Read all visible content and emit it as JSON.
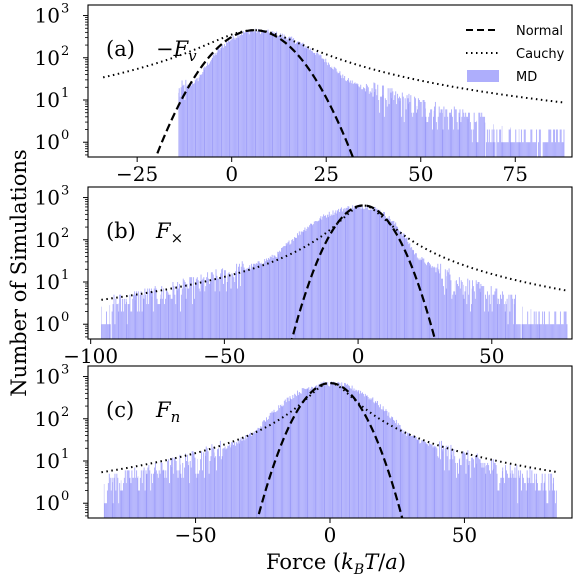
{
  "chart_data": [
    {
      "type": "histogram",
      "panel_label": "(a)",
      "symbol": "−F",
      "symbol_sub": "v",
      "xlim": [
        -38,
        90
      ],
      "ylim_log10": [
        -0.35,
        3.25
      ],
      "y_scale": "log",
      "xticks": [
        -25,
        0,
        25,
        50,
        75
      ],
      "xtick_labels": [
        "−25",
        "0",
        "25",
        "50",
        "75"
      ],
      "yticks": [
        0,
        1,
        2,
        3
      ],
      "normal": {
        "mu": 6,
        "sigma": 7.0,
        "peak": 450
      },
      "cauchy": {
        "x0": 6,
        "gamma": 11.5,
        "peak": 450,
        "xrange": [
          -34,
          88
        ]
      },
      "md": {
        "mu": 6,
        "sigma_left": 6.5,
        "sigma_right": 10.5,
        "peak": 430,
        "range": [
          -14,
          88
        ],
        "bin_width": 0.25
      },
      "legend": {
        "position": "top-right",
        "entries": [
          "Normal",
          "Cauchy",
          "MD"
        ]
      },
      "grid": false
    },
    {
      "type": "histogram",
      "panel_label": "(b)",
      "symbol": "F",
      "symbol_sub": "×",
      "xlim": [
        -101,
        80
      ],
      "ylim_log10": [
        -0.35,
        3.25
      ],
      "y_scale": "log",
      "xticks": [
        -100,
        -50,
        0,
        50
      ],
      "xtick_labels": [
        "−100",
        "−50",
        "0",
        "50"
      ],
      "yticks": [
        0,
        1,
        2,
        3
      ],
      "normal": {
        "mu": 2,
        "sigma": 7.0,
        "peak": 650
      },
      "cauchy": {
        "x0": 2,
        "gamma": 7.5,
        "peak": 650,
        "xrange": [
          -96,
          78
        ]
      },
      "md": {
        "mu": 2,
        "sigma_left": 14,
        "sigma_right": 8.5,
        "peak": 620,
        "range": [
          -96,
          78
        ],
        "bin_width": 0.35
      },
      "grid": false
    },
    {
      "type": "histogram",
      "panel_label": "(c)",
      "symbol": "F",
      "symbol_sub": "n",
      "xlim": [
        -90,
        90
      ],
      "ylim_log10": [
        -0.35,
        3.25
      ],
      "y_scale": "log",
      "xticks": [
        -50,
        0,
        50
      ],
      "xtick_labels": [
        "−50",
        "0",
        "50"
      ],
      "yticks": [
        0,
        1,
        2,
        3
      ],
      "normal": {
        "mu": 0,
        "sigma": 7.0,
        "peak": 700
      },
      "cauchy": {
        "x0": 0,
        "gamma": 7.5,
        "peak": 700,
        "xrange": [
          -85,
          85
        ]
      },
      "md": {
        "mu": 0,
        "sigma_left": 12,
        "sigma_right": 12,
        "peak": 680,
        "range": [
          -84,
          84
        ],
        "bin_width": 0.35
      },
      "grid": false
    }
  ],
  "ylabel": "Number of Simulations",
  "xlabel": "Force (k_B T/a)",
  "xlabel_parts": {
    "pre": "Force (",
    "k": "k",
    "sub": "B",
    "mid": "T",
    "slash": "/",
    "a": "a",
    "post": ")"
  },
  "legend_labels": {
    "normal": "Normal",
    "cauchy": "Cauchy",
    "md": "MD"
  },
  "colors": {
    "md_fill": "#aeaefc",
    "md_edge": "#6a6aee",
    "normal": "#000000",
    "cauchy": "#000000"
  }
}
